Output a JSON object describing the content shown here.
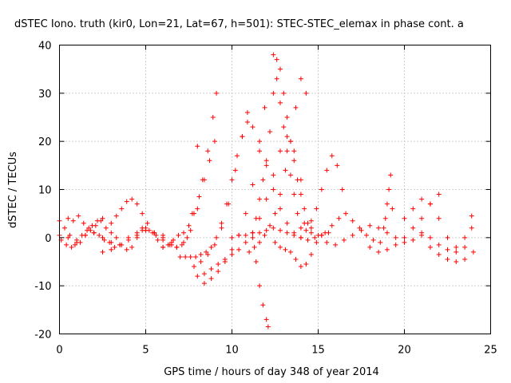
{
  "chart_data": {
    "type": "scatter",
    "title": "dSTEC Iono. truth (kir0, Lon=21, Lat=67, h=501): STEC-STEC_elemax in phase cont. a",
    "xlabel": "GPS time / hours of day 348 of year 2014",
    "ylabel": "dSTEC  / TECUs",
    "xlim": [
      0,
      25
    ],
    "ylim": [
      -20,
      40
    ],
    "xticks": [
      0,
      5,
      10,
      15,
      20,
      25
    ],
    "yticks": [
      -20,
      -10,
      0,
      10,
      20,
      30,
      40
    ],
    "xtick_labels": [
      "0",
      "5",
      "10",
      "15",
      "20",
      "25"
    ],
    "ytick_labels": [
      "-20",
      "-10",
      "0",
      "10",
      "20",
      "30",
      "40"
    ],
    "grid": true,
    "marker": "plus",
    "color": "#ff0000",
    "series": [
      {
        "x": [
          0.0,
          0.3,
          0.6,
          0.9,
          1.2,
          1.5,
          1.8,
          2.1,
          2.4,
          2.7,
          3.0,
          3.3,
          3.6,
          3.9,
          4.2,
          4.5,
          4.8,
          5.0
        ],
        "y": [
          3.5,
          2.0,
          0.5,
          -1.5,
          -1.0,
          0.5,
          1.5,
          2.5,
          3.5,
          2.0,
          1.0,
          0.0,
          -1.5,
          -2.5,
          -2.0,
          0.0,
          1.5,
          2.0
        ]
      },
      {
        "x": [
          0.1,
          0.4,
          0.7,
          1.0,
          1.3,
          1.6,
          1.9,
          2.2,
          2.5
        ],
        "y": [
          -0.5,
          -1.5,
          -2.0,
          -1.0,
          0.5,
          1.5,
          2.5,
          3.5,
          4.0
        ]
      },
      {
        "x": [
          0.5,
          0.8,
          1.1,
          1.4,
          1.7,
          2.0,
          2.3,
          2.6,
          2.9,
          3.2
        ],
        "y": [
          4.0,
          3.5,
          4.5,
          3.0,
          2.0,
          1.0,
          0.5,
          -0.5,
          -1.0,
          -2.0
        ]
      },
      {
        "x": [
          0.0,
          0.5,
          1.0,
          1.5,
          2.0,
          2.5,
          3.0,
          3.5,
          4.0,
          4.5,
          5.0,
          5.5,
          6.0
        ],
        "y": [
          0.5,
          0.0,
          -0.5,
          0.5,
          1.0,
          0.0,
          -1.0,
          -1.5,
          -0.5,
          0.5,
          1.5,
          1.0,
          0.5
        ]
      },
      {
        "x": [
          3.0,
          3.3,
          3.6,
          3.9,
          4.2,
          4.5,
          4.8,
          5.1,
          5.4,
          5.7,
          6.0
        ],
        "y": [
          3.0,
          4.5,
          6.0,
          7.5,
          8.0,
          7.0,
          5.0,
          3.0,
          1.0,
          -0.5,
          -2.0
        ]
      },
      {
        "x": [
          2.5,
          3.0,
          3.5,
          4.0,
          4.5,
          5.0,
          5.5,
          6.0,
          6.5
        ],
        "y": [
          -3.0,
          -2.5,
          -1.5,
          0.0,
          1.0,
          1.5,
          1.0,
          0.0,
          -1.0
        ]
      },
      {
        "x": [
          4.8,
          5.2,
          5.6,
          6.0,
          6.4,
          6.8,
          7.2,
          7.6,
          8.0,
          8.3,
          8.6,
          8.9,
          9.1
        ],
        "y": [
          2.0,
          1.5,
          0.5,
          -0.5,
          -1.5,
          -2.0,
          -1.0,
          1.5,
          6.0,
          12.0,
          18.0,
          25.0,
          30.0
        ]
      },
      {
        "x": [
          6.0,
          6.3,
          6.6,
          6.9,
          7.2,
          7.5,
          7.8,
          8.1,
          8.4,
          8.7,
          9.0
        ],
        "y": [
          -2.0,
          -1.5,
          -0.5,
          0.5,
          1.0,
          2.5,
          5.0,
          8.5,
          12.0,
          16.0,
          20.0
        ]
      },
      {
        "x": [
          6.5,
          6.8,
          7.1,
          7.4,
          7.7,
          8.0
        ],
        "y": [
          -1.5,
          -2.0,
          -1.5,
          0.0,
          5.0,
          19.0
        ]
      },
      {
        "x": [
          7.0,
          7.3,
          7.6,
          7.9,
          8.2,
          8.5,
          8.8,
          9.1,
          9.4,
          9.7,
          10.0,
          10.3,
          10.6,
          10.9,
          11.2,
          11.6,
          12.0,
          12.4,
          12.8,
          13.2,
          13.6
        ],
        "y": [
          -4.0,
          -4.0,
          -4.0,
          -4.0,
          -3.5,
          -3.0,
          -2.0,
          0.0,
          3.0,
          7.0,
          12.0,
          17.0,
          21.0,
          24.0,
          23.0,
          20.0,
          15.0,
          10.0,
          6.0,
          3.0,
          1.0
        ]
      },
      {
        "x": [
          7.8,
          8.2,
          8.6,
          9.0,
          9.4,
          9.8,
          10.2,
          10.6,
          10.9
        ],
        "y": [
          -6.0,
          -5.0,
          -3.5,
          -1.5,
          2.0,
          7.0,
          14.0,
          21.0,
          26.0
        ]
      },
      {
        "x": [
          8.0,
          8.4,
          8.8,
          9.2,
          9.6,
          10.0,
          10.4,
          10.8,
          11.2,
          11.6,
          12.0,
          12.4,
          12.8,
          13.2,
          13.6,
          14.0
        ],
        "y": [
          -8.0,
          -7.5,
          -6.5,
          -5.5,
          -4.5,
          -3.5,
          -2.5,
          -1.0,
          1.0,
          4.0,
          8.0,
          13.0,
          18.0,
          21.0,
          18.0,
          12.0
        ]
      },
      {
        "x": [
          8.4,
          8.8,
          9.2,
          9.6,
          10.0,
          10.4,
          10.8,
          11.2,
          11.6,
          11.9
        ],
        "y": [
          -9.5,
          -8.5,
          -7.0,
          -5.0,
          -2.5,
          0.5,
          5.0,
          11.0,
          18.0,
          27.0
        ]
      },
      {
        "x": [
          10.0,
          10.4,
          10.8,
          11.2,
          11.6,
          12.0,
          12.4,
          12.8,
          13.2,
          13.6,
          14.0,
          14.4,
          14.8,
          15.2,
          15.6
        ],
        "y": [
          0.0,
          0.5,
          0.5,
          1.0,
          1.0,
          1.5,
          2.0,
          1.5,
          1.0,
          0.5,
          0.0,
          -0.5,
          0.0,
          0.5,
          1.0
        ]
      },
      {
        "x": [
          11.0,
          11.3,
          11.6,
          11.9,
          12.2,
          12.5,
          12.8,
          13.1,
          13.4,
          13.7,
          14.0,
          14.3
        ],
        "y": [
          -3.0,
          -2.0,
          -1.0,
          0.5,
          2.5,
          5.0,
          9.0,
          14.0,
          20.0,
          27.0,
          33.0,
          30.0
        ]
      },
      {
        "x": [
          11.2,
          11.4,
          11.6,
          11.8,
          12.0,
          12.1
        ],
        "y": [
          0.0,
          -5.0,
          -10.0,
          -14.0,
          -17.0,
          -18.5
        ]
      },
      {
        "x": [
          11.4,
          11.6,
          11.8,
          12.0,
          12.2,
          12.4,
          12.6,
          12.8,
          13.0,
          13.2,
          13.4,
          13.6,
          13.8,
          14.0,
          14.2,
          14.4,
          14.6
        ],
        "y": [
          4.0,
          8.0,
          12.0,
          16.0,
          22.0,
          30.0,
          37.0,
          35.0,
          30.0,
          25.0,
          20.0,
          16.0,
          12.0,
          9.0,
          6.0,
          3.0,
          1.0
        ]
      },
      {
        "x": [
          12.4,
          12.6,
          12.8,
          13.0,
          13.2,
          13.4,
          13.6,
          13.8,
          14.0
        ],
        "y": [
          38.0,
          33.0,
          28.0,
          23.0,
          18.0,
          13.0,
          9.0,
          5.0,
          2.0
        ]
      },
      {
        "x": [
          12.5,
          12.8,
          13.1,
          13.4,
          13.7,
          14.0,
          14.3,
          14.6,
          14.9,
          15.2
        ],
        "y": [
          -1.0,
          -2.0,
          -2.5,
          -3.0,
          -4.5,
          -6.0,
          -5.5,
          -3.5,
          -1.0,
          0.5
        ]
      },
      {
        "x": [
          14.0,
          14.3,
          14.6,
          14.9,
          15.2,
          15.5,
          15.8,
          16.1,
          16.4
        ],
        "y": [
          0.0,
          1.5,
          3.5,
          6.0,
          10.0,
          14.0,
          17.0,
          15.0,
          10.0
        ]
      },
      {
        "x": [
          14.2,
          14.6,
          15.0,
          15.4,
          15.8,
          16.2,
          16.6,
          17.0,
          17.4,
          17.8,
          18.2,
          18.6
        ],
        "y": [
          3.0,
          2.0,
          0.5,
          1.0,
          2.5,
          4.0,
          5.0,
          3.5,
          2.0,
          0.5,
          -0.5,
          -1.0
        ]
      },
      {
        "x": [
          15.5,
          16.0,
          16.5,
          17.0,
          17.5,
          18.0,
          18.5,
          19.0,
          19.5,
          20.0,
          20.5,
          21.0
        ],
        "y": [
          -1.0,
          -1.5,
          -0.5,
          0.5,
          1.5,
          2.5,
          2.0,
          1.0,
          0.0,
          -1.0,
          -0.5,
          0.5
        ]
      },
      {
        "x": [
          18.8,
          18.9,
          19.0,
          19.1,
          19.2,
          19.3
        ],
        "y": [
          2.0,
          4.0,
          7.0,
          10.0,
          13.0,
          6.0
        ]
      },
      {
        "x": [
          18.0,
          18.5,
          19.0,
          19.5,
          20.0,
          20.5,
          21.0,
          21.5,
          22.0
        ],
        "y": [
          -2.0,
          -3.0,
          -2.5,
          -1.5,
          0.0,
          2.0,
          4.0,
          7.0,
          9.0
        ]
      },
      {
        "x": [
          20.0,
          20.5,
          21.0,
          21.5,
          22.0,
          22.5,
          23.0,
          23.5,
          24.0
        ],
        "y": [
          4.0,
          6.0,
          8.0,
          7.0,
          4.0,
          0.0,
          -3.0,
          -4.5,
          -3.0
        ]
      },
      {
        "x": [
          21.0,
          21.5,
          22.0,
          22.5,
          23.0,
          23.5,
          23.9
        ],
        "y": [
          1.0,
          0.0,
          -1.5,
          -2.5,
          -2.0,
          0.0,
          2.0
        ]
      },
      {
        "x": [
          21.5,
          22.0,
          22.5,
          23.0,
          23.5,
          23.9
        ],
        "y": [
          -2.0,
          -3.5,
          -4.5,
          -5.0,
          -2.0,
          4.5
        ]
      }
    ]
  }
}
